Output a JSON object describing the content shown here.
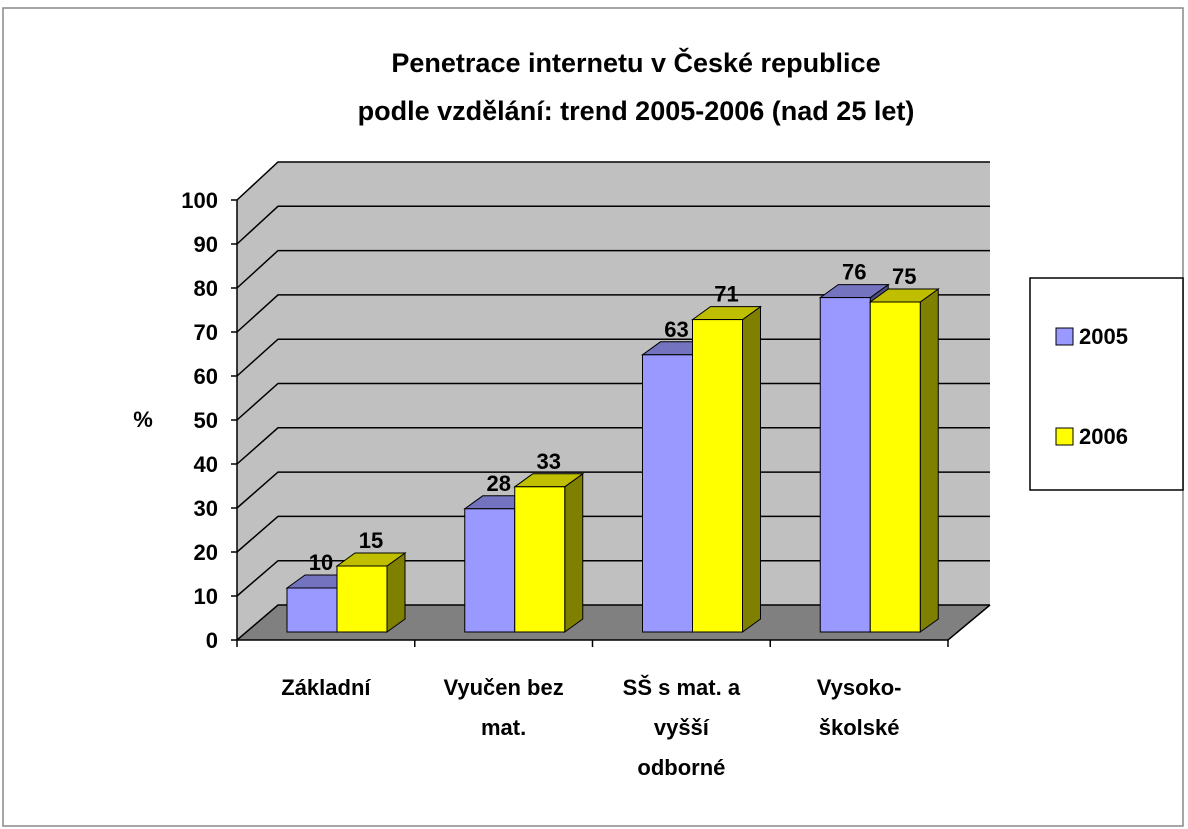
{
  "chart_data": {
    "type": "bar3d",
    "title": "Penetrace internetu v České republice\npodle vzdělání: trend 2005-2006 (nad 25 let)",
    "y_label": "%",
    "categories": [
      "Základní",
      "Vyučen bez\nmat.",
      "SŠ s mat. a\nvyšší\nodborné",
      "Vysoko-\nškolské"
    ],
    "series": [
      {
        "name": "2005",
        "color": "#9999ff",
        "values": [
          10,
          28,
          63,
          76
        ]
      },
      {
        "name": "2006",
        "color": "#ffff00",
        "values": [
          15,
          33,
          71,
          75
        ]
      }
    ],
    "ylim": [
      0,
      100
    ],
    "yticks": [
      0,
      10,
      20,
      30,
      40,
      50,
      60,
      70,
      80,
      90,
      100
    ],
    "grid": true,
    "legend": "right"
  }
}
